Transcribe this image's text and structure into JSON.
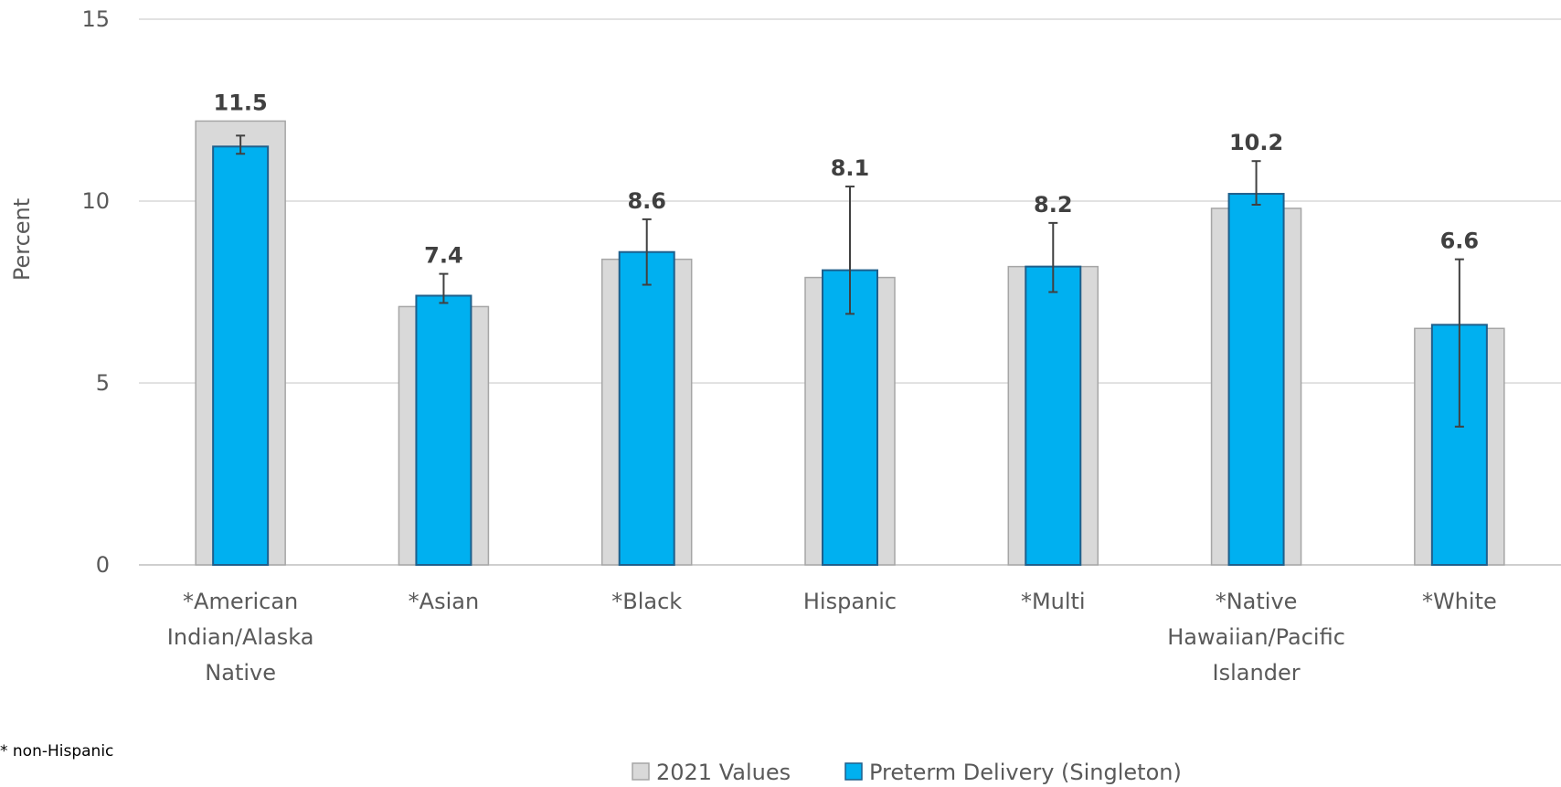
{
  "chart_data": {
    "type": "bar",
    "ylabel": "Percent",
    "ylim": [
      0,
      15
    ],
    "yticks": [
      0,
      5,
      10,
      15
    ],
    "grid": true,
    "categories": [
      "*American Indian/Alaska Native",
      "*Asian",
      "*Black",
      "Hispanic",
      "*Multi",
      "*Native Hawaiian/Pacific Islander",
      "*White"
    ],
    "category_lines": [
      [
        "*American",
        "Indian/Alaska",
        "Native"
      ],
      [
        "*Asian"
      ],
      [
        "*Black"
      ],
      [
        "Hispanic"
      ],
      [
        "*Multi"
      ],
      [
        "*Native",
        "Hawaiian/Pacific",
        "Islander"
      ],
      [
        "*White"
      ]
    ],
    "series": [
      {
        "name": "2021 Values",
        "values": [
          12.2,
          7.1,
          8.4,
          7.9,
          8.2,
          9.8,
          6.5
        ],
        "color": "#d9d9d9"
      },
      {
        "name": "Preterm Delivery (Singleton)",
        "values": [
          11.5,
          7.4,
          8.6,
          8.1,
          8.2,
          10.2,
          6.6
        ],
        "color": "#00b0f0",
        "error_low": [
          11.3,
          7.2,
          7.7,
          6.9,
          7.5,
          9.9,
          3.8
        ],
        "error_high": [
          11.8,
          8.0,
          9.5,
          10.4,
          9.4,
          11.1,
          8.4
        ]
      }
    ],
    "data_labels": [
      "11.5",
      "7.4",
      "8.6",
      "8.1",
      "8.2",
      "10.2",
      "6.6"
    ],
    "legend_position": "bottom"
  },
  "footnote": "* non-Hispanic"
}
